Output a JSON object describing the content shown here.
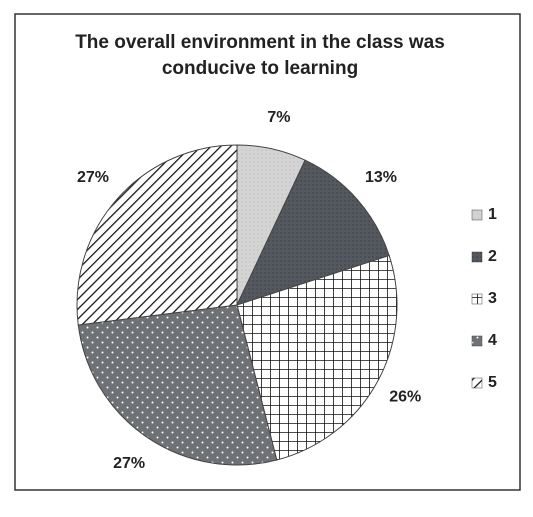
{
  "chart_data": {
    "type": "pie",
    "title": "The overall environment in the class was conducive to learning",
    "categories": [
      "1",
      "2",
      "3",
      "4",
      "5"
    ],
    "values": [
      7,
      13,
      26,
      27,
      27
    ],
    "value_labels": [
      "7%",
      "13%",
      "26%",
      "27%",
      "27%"
    ],
    "colors": [
      "#d4d4d4",
      "#54595f",
      "#ffffff",
      "#6e7175",
      "#ffffff"
    ],
    "legend": "right"
  }
}
